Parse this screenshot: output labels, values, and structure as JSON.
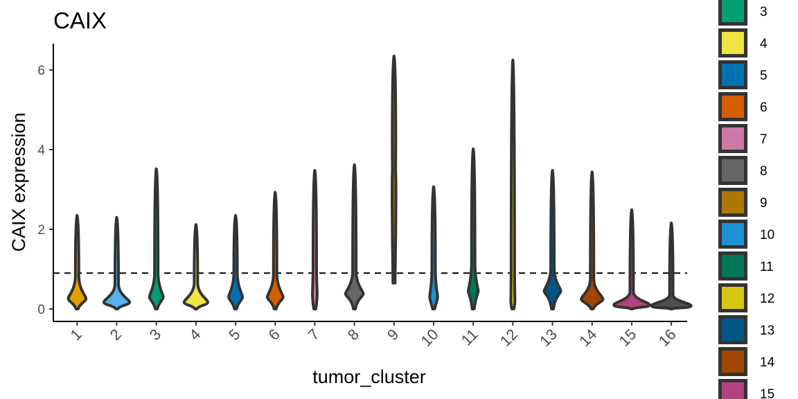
{
  "chart_data": {
    "type": "violin",
    "title": "CAIX",
    "xlabel": "tumor_cluster",
    "ylabel": "CAIX expression",
    "ylim": [
      -0.3,
      6.6
    ],
    "yticks": [
      0,
      2,
      4,
      6
    ],
    "categories": [
      "1",
      "2",
      "3",
      "4",
      "5",
      "6",
      "7",
      "8",
      "9",
      "10",
      "11",
      "12",
      "13",
      "14",
      "15",
      "16"
    ],
    "threshold": 0.9,
    "violins": [
      {
        "category": "1",
        "min": 0.0,
        "max": 2.35,
        "center": 0.26,
        "width": 0.45,
        "color": "#E69F00"
      },
      {
        "category": "2",
        "min": 0.0,
        "max": 2.3,
        "center": 0.17,
        "width": 0.65,
        "color": "#56B4E9"
      },
      {
        "category": "3",
        "min": 0.0,
        "max": 3.52,
        "center": 0.3,
        "width": 0.35,
        "color": "#009E73"
      },
      {
        "category": "4",
        "min": 0.0,
        "max": 2.12,
        "center": 0.17,
        "width": 0.6,
        "color": "#F0E442"
      },
      {
        "category": "5",
        "min": 0.0,
        "max": 2.35,
        "center": 0.3,
        "width": 0.35,
        "color": "#0072B2"
      },
      {
        "category": "6",
        "min": 0.0,
        "max": 2.93,
        "center": 0.3,
        "width": 0.4,
        "color": "#D55E00"
      },
      {
        "category": "7",
        "min": 0.0,
        "max": 3.48,
        "center": 0.4,
        "width": 0.12,
        "color": "#CC79A7"
      },
      {
        "category": "8",
        "min": 0.0,
        "max": 3.62,
        "center": 0.38,
        "width": 0.45,
        "color": "#666666"
      },
      {
        "category": "9",
        "min": 0.65,
        "max": 6.35,
        "center": 3.5,
        "width": 0.08,
        "color": "#AD7700"
      },
      {
        "category": "10",
        "min": 0.0,
        "max": 3.07,
        "center": 0.3,
        "width": 0.2,
        "color": "#1C91D4"
      },
      {
        "category": "11",
        "min": 0.0,
        "max": 4.02,
        "center": 0.45,
        "width": 0.25,
        "color": "#007756"
      },
      {
        "category": "12",
        "min": 0.0,
        "max": 6.25,
        "center": 0.3,
        "width": 0.1,
        "color": "#D5C711"
      },
      {
        "category": "13",
        "min": 0.0,
        "max": 3.48,
        "center": 0.45,
        "width": 0.42,
        "color": "#005685"
      },
      {
        "category": "14",
        "min": 0.0,
        "max": 3.44,
        "center": 0.25,
        "width": 0.55,
        "color": "#A04700"
      },
      {
        "category": "15",
        "min": 0.0,
        "max": 2.49,
        "center": 0.1,
        "width": 0.9,
        "color": "#B14380"
      },
      {
        "category": "16",
        "min": 0.0,
        "max": 2.16,
        "center": 0.08,
        "width": 1.0,
        "color": "#4D4D4D"
      }
    ],
    "legend": {
      "position": "right",
      "entries": [
        {
          "label": "3",
          "color": "#009E73"
        },
        {
          "label": "4",
          "color": "#F0E442"
        },
        {
          "label": "5",
          "color": "#0072B2"
        },
        {
          "label": "6",
          "color": "#D55E00"
        },
        {
          "label": "7",
          "color": "#CC79A7"
        },
        {
          "label": "8",
          "color": "#666666"
        },
        {
          "label": "9",
          "color": "#AD7700"
        },
        {
          "label": "10",
          "color": "#1C91D4"
        },
        {
          "label": "11",
          "color": "#007756"
        },
        {
          "label": "12",
          "color": "#D5C711"
        },
        {
          "label": "13",
          "color": "#005685"
        },
        {
          "label": "14",
          "color": "#A04700"
        },
        {
          "label": "15",
          "color": "#B14380"
        }
      ]
    }
  }
}
